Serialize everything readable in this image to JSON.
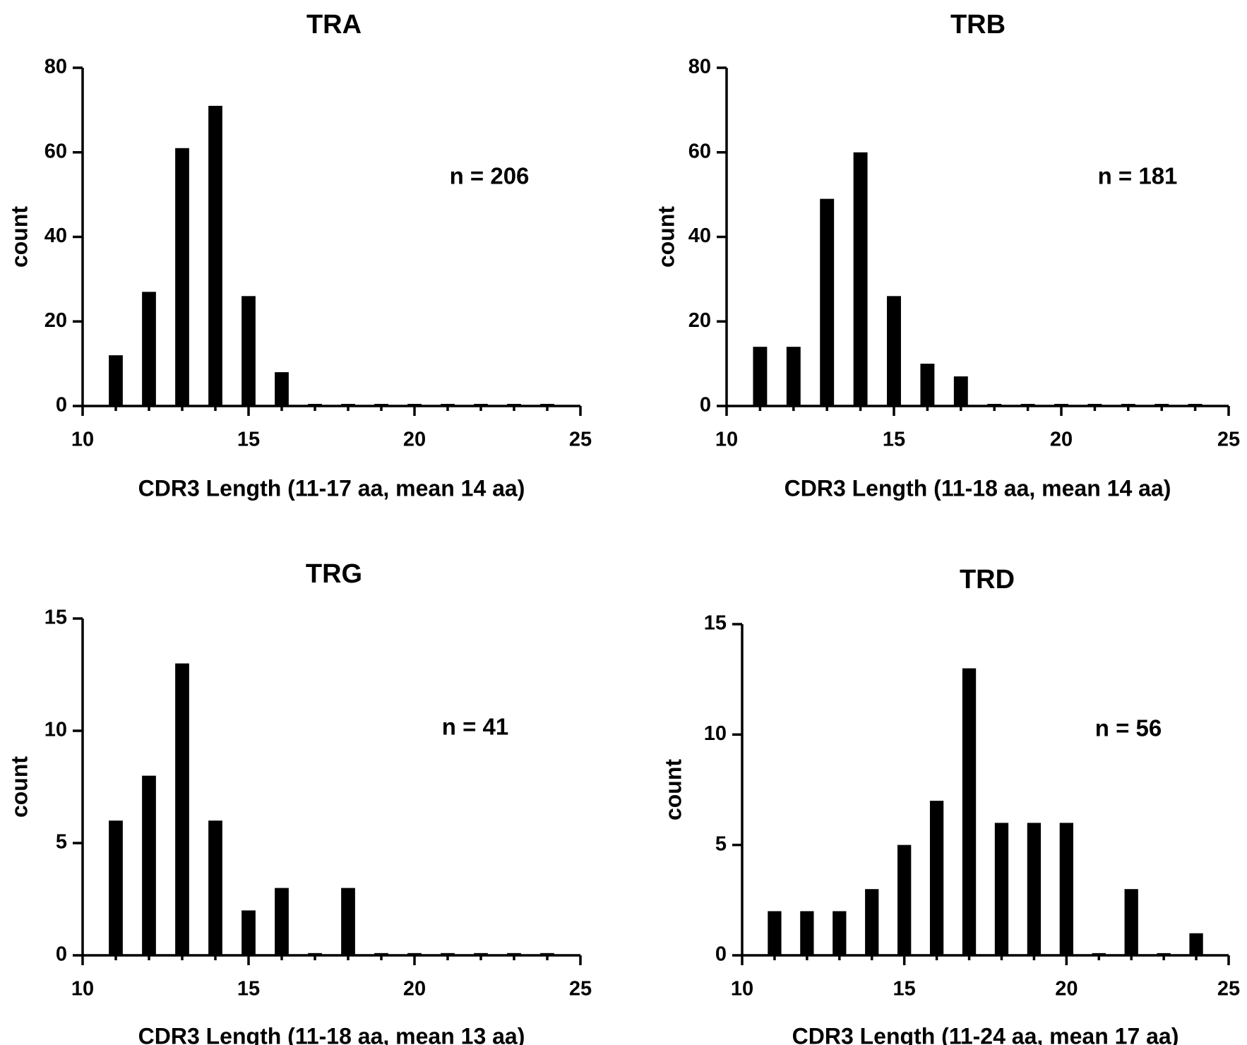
{
  "chart_data": [
    {
      "type": "bar",
      "title": "TRA",
      "xlabel": "CDR3 Length (11-17 aa, mean 14 aa)",
      "ylabel": "count",
      "annotation": "n = 206",
      "xlim": [
        10,
        25
      ],
      "ylim": [
        0,
        80
      ],
      "xticks": [
        "10",
        "15",
        "20",
        "25"
      ],
      "yticks": [
        "0",
        "20",
        "40",
        "60",
        "80"
      ],
      "x": [
        11,
        12,
        13,
        14,
        15,
        16,
        17,
        18,
        19,
        20,
        21,
        22,
        23,
        24
      ],
      "values": [
        12,
        27,
        61,
        71,
        26,
        8,
        0.5,
        0.5,
        0.5,
        0.5,
        0.5,
        0.5,
        0.5,
        0.5
      ]
    },
    {
      "type": "bar",
      "title": "TRB",
      "xlabel": "CDR3 Length (11-18 aa, mean 14 aa)",
      "ylabel": "count",
      "annotation": "n = 181",
      "xlim": [
        10,
        25
      ],
      "ylim": [
        0,
        80
      ],
      "xticks": [
        "10",
        "15",
        "20",
        "25"
      ],
      "yticks": [
        "0",
        "20",
        "40",
        "60",
        "80"
      ],
      "x": [
        11,
        12,
        13,
        14,
        15,
        16,
        17,
        18,
        19,
        20,
        21,
        22,
        23,
        24
      ],
      "values": [
        14,
        14,
        49,
        60,
        26,
        10,
        7,
        0.5,
        0.5,
        0.5,
        0.5,
        0.5,
        0.5,
        0.5
      ]
    },
    {
      "type": "bar",
      "title": "TRG",
      "xlabel": "CDR3 Length (11-18 aa, mean 13 aa)",
      "ylabel": "count",
      "annotation": "n = 41",
      "xlim": [
        10,
        25
      ],
      "ylim": [
        0,
        15
      ],
      "xticks": [
        "10",
        "15",
        "20",
        "25"
      ],
      "yticks": [
        "0",
        "5",
        "10",
        "15"
      ],
      "x": [
        11,
        12,
        13,
        14,
        15,
        16,
        17,
        18,
        19,
        20,
        21,
        22,
        23,
        24
      ],
      "values": [
        6,
        8,
        13,
        6,
        2,
        3,
        0.1,
        3,
        0.1,
        0.1,
        0.1,
        0.1,
        0.1,
        0.1
      ]
    },
    {
      "type": "bar",
      "title": "TRD",
      "xlabel": "CDR3 Length (11-24 aa, mean 17 aa)",
      "ylabel": "count",
      "annotation": "n = 56",
      "xlim": [
        10,
        25
      ],
      "ylim": [
        0,
        15
      ],
      "xticks": [
        "10",
        "15",
        "20",
        "25"
      ],
      "yticks": [
        "0",
        "5",
        "10",
        "15"
      ],
      "x": [
        11,
        12,
        13,
        14,
        15,
        16,
        17,
        18,
        19,
        20,
        21,
        22,
        23,
        24
      ],
      "values": [
        2,
        2,
        2,
        3,
        5,
        7,
        13,
        6,
        6,
        6,
        0.1,
        3,
        0.1,
        1
      ]
    }
  ]
}
